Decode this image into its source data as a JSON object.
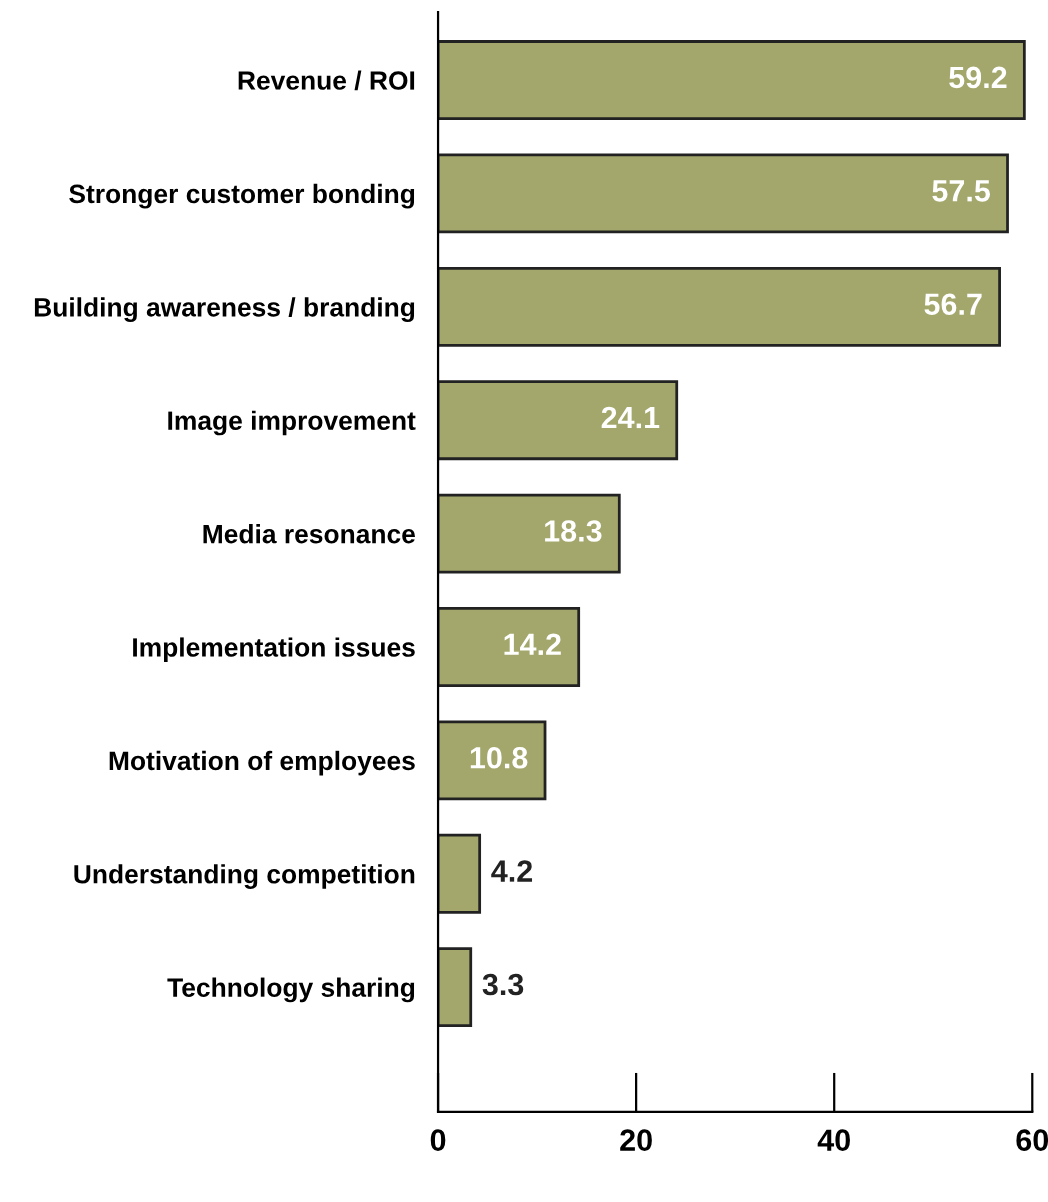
{
  "chart_data": {
    "type": "bar",
    "orientation": "horizontal",
    "categories": [
      "Revenue / ROI",
      "Stronger customer bonding",
      "Building awareness / branding",
      "Image improvement",
      "Media resonance",
      "Implementation issues",
      "Motivation of employees",
      "Understanding competition",
      "Technology sharing"
    ],
    "values": [
      59.2,
      57.5,
      56.7,
      24.1,
      18.3,
      14.2,
      10.8,
      4.2,
      3.3
    ],
    "color": "#a3a76b",
    "xlim": [
      0,
      60
    ],
    "xticks": [
      0,
      20,
      40,
      60
    ],
    "data_labels": true,
    "grid": false,
    "legend": false
  }
}
